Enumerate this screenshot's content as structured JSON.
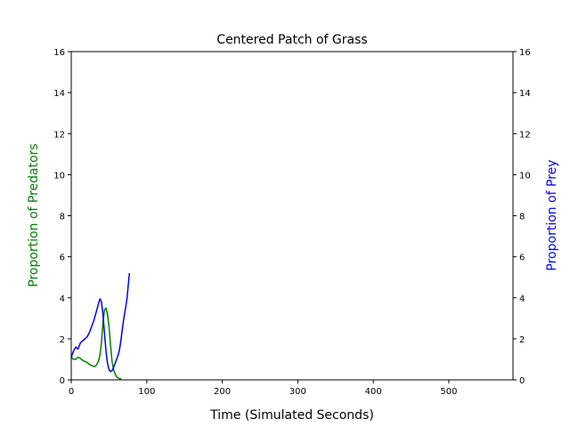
{
  "chart_data": {
    "type": "line",
    "title": "Centered Patch of Grass",
    "xlabel": "Time (Simulated Seconds)",
    "ylabel_left": "Proportion of Predators",
    "ylabel_right": "Proportion of Prey",
    "xlim": [
      0,
      585
    ],
    "ylim_left": [
      0,
      16
    ],
    "ylim_right": [
      0,
      16
    ],
    "xticks": [
      0,
      100,
      200,
      300,
      400,
      500
    ],
    "yticks_left": [
      0,
      2,
      4,
      6,
      8,
      10,
      12,
      14,
      16
    ],
    "yticks_right": [
      0,
      2,
      4,
      6,
      8,
      10,
      12,
      14,
      16
    ],
    "grid": false,
    "series": [
      {
        "axis": "left",
        "color": "#008000",
        "x": [
          0,
          3,
          6,
          9,
          12,
          15,
          18,
          21,
          24,
          27,
          30,
          33,
          36,
          38,
          40,
          42,
          44,
          46,
          48,
          50,
          52,
          54,
          56,
          58,
          60,
          62,
          64,
          66
        ],
        "y": [
          1.1,
          1.0,
          1.0,
          1.1,
          1.05,
          0.95,
          0.9,
          0.85,
          0.75,
          0.7,
          0.65,
          0.7,
          0.9,
          1.2,
          1.8,
          2.8,
          3.4,
          3.5,
          3.2,
          2.6,
          1.7,
          0.9,
          0.5,
          0.3,
          0.15,
          0.1,
          0.05,
          0.05
        ]
      },
      {
        "axis": "right",
        "color": "#0000ff",
        "x": [
          0,
          3,
          6,
          9,
          12,
          15,
          18,
          21,
          24,
          27,
          30,
          33,
          36,
          38,
          40,
          42,
          44,
          46,
          48,
          50,
          52,
          54,
          56,
          58,
          60,
          62,
          64,
          66,
          68,
          70,
          72,
          74,
          76,
          77
        ],
        "y": [
          1.1,
          1.4,
          1.6,
          1.5,
          1.8,
          1.9,
          2.0,
          2.1,
          2.3,
          2.6,
          2.9,
          3.3,
          3.7,
          3.95,
          3.8,
          3.2,
          2.3,
          1.4,
          0.8,
          0.5,
          0.4,
          0.45,
          0.6,
          0.8,
          1.0,
          1.2,
          1.5,
          2.0,
          2.6,
          3.1,
          3.5,
          4.0,
          4.8,
          5.2
        ]
      }
    ]
  }
}
